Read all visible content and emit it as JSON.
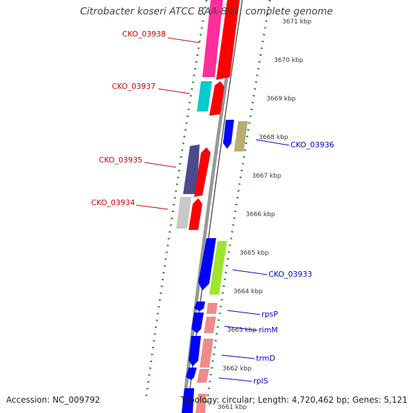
{
  "title": "Citrobacter koseri ATCC BAA-895, complete genome",
  "footer": {
    "accession": "Accession: NC_009792",
    "summary": "Topology: circular; Length: 4,720,462 bp; Genes: 5,121"
  },
  "colors": {
    "backbone": "#999999",
    "ticks": "#2e8b2e",
    "left_label": "#cc0000",
    "right_label": "#0000cc"
  },
  "kbp_labels": [
    "3671 kbp",
    "3670 kbp",
    "3669 kbp",
    "3668 kbp",
    "3667 kbp",
    "3666 kbp",
    "3665 kbp",
    "3664 kbp",
    "3663 kbp",
    "3662 kbp",
    "3661 kbp"
  ],
  "genes_left": [
    {
      "label": "CKO_03938",
      "color": "#ff2e9a"
    },
    {
      "label": "CKO_03937",
      "color": "#00cccc"
    },
    {
      "label": "CKO_03935",
      "color": "#4b4a8c"
    },
    {
      "label": "CKO_03934",
      "color": "#c8c8c8"
    }
  ],
  "genes_right": [
    {
      "label": "CKO_03936",
      "color": "#b8ad72"
    },
    {
      "label": "CKO_03933",
      "color": "#9ee62e"
    },
    {
      "label": "rpsP",
      "color": "#f08a8a"
    },
    {
      "label": "rimM",
      "color": "#f08a8a"
    },
    {
      "label": "trmD",
      "color": "#f08a8a"
    },
    {
      "label": "rplS",
      "color": "#f08a8a"
    }
  ]
}
